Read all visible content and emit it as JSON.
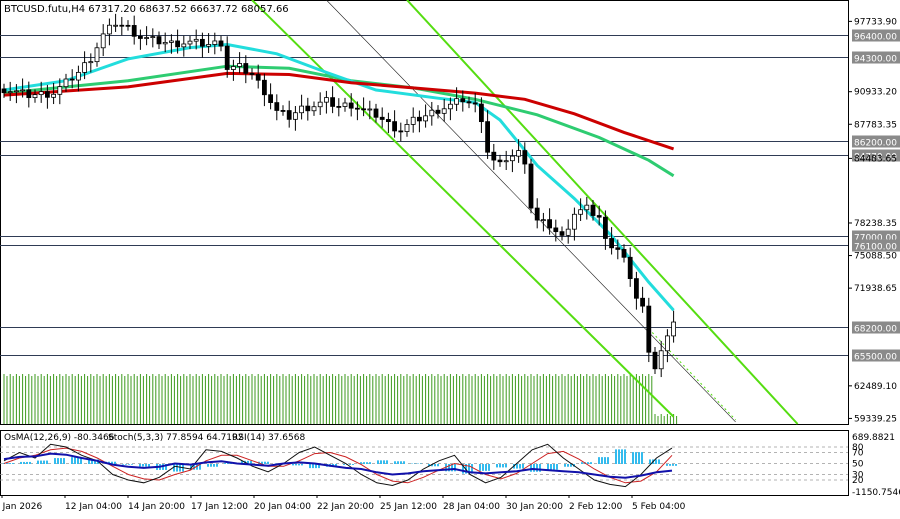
{
  "chart_data": {
    "type": "candlestick",
    "symbol_line": "BTCUSD.futu,H4  67317.20 68637.52 66637.72 68057.66",
    "main_axis_ticks": [
      "97733.90",
      "90933.20",
      "87783.35",
      "84483.65",
      "78238.35",
      "75088.50",
      "71938.65",
      "62489.10",
      "59339.25"
    ],
    "main_axis_ylim": [
      58800,
      99800
    ],
    "levels": [
      {
        "label": "96400.00",
        "value": 96400
      },
      {
        "label": "94300.00",
        "value": 94300
      },
      {
        "label": "86200.00",
        "value": 86200
      },
      {
        "label": "84770.00",
        "value": 84770
      },
      {
        "label": "77000.00",
        "value": 77000
      },
      {
        "label": "76100.00",
        "value": 76100
      },
      {
        "label": "68200.00",
        "value": 68200
      },
      {
        "label": "65500.00",
        "value": 65500
      }
    ],
    "ema_colors": {
      "slow": "#cc0000",
      "mid": "#2ecc71",
      "fast": "#22dddd"
    },
    "channel_color": "#55dd11",
    "x_labels": [
      "9 Jan 2026",
      "12 Jan 04:00",
      "14 Jan 20:00",
      "17 Jan 12:00",
      "20 Jan 04:00",
      "22 Jan 20:00",
      "25 Jan 12:00",
      "28 Jan 04:00",
      "30 Jan 20:00",
      "2 Feb 12:00",
      "5 Feb 04:00"
    ],
    "close_path": [
      [
        0,
        91200
      ],
      [
        4,
        90600
      ],
      [
        8,
        90800
      ],
      [
        10,
        91800
      ],
      [
        12,
        92800
      ],
      [
        14,
        94200
      ],
      [
        16,
        96400
      ],
      [
        18,
        97600
      ],
      [
        20,
        97100
      ],
      [
        22,
        96200
      ],
      [
        24,
        95900
      ],
      [
        27,
        95600
      ],
      [
        30,
        95700
      ],
      [
        33,
        95500
      ],
      [
        35,
        95700
      ],
      [
        36,
        93200
      ],
      [
        38,
        93300
      ],
      [
        40,
        92600
      ],
      [
        42,
        91000
      ],
      [
        44,
        89000
      ],
      [
        46,
        88500
      ],
      [
        48,
        89300
      ],
      [
        50,
        89600
      ],
      [
        52,
        90000
      ],
      [
        54,
        89500
      ],
      [
        56,
        89700
      ],
      [
        58,
        89100
      ],
      [
        60,
        88700
      ],
      [
        62,
        87800
      ],
      [
        64,
        87200
      ],
      [
        66,
        88100
      ],
      [
        68,
        88600
      ],
      [
        70,
        89200
      ],
      [
        72,
        89600
      ],
      [
        74,
        90200
      ],
      [
        76,
        89500
      ],
      [
        77,
        88400
      ],
      [
        78,
        85200
      ],
      [
        79,
        84200
      ],
      [
        80,
        83800
      ],
      [
        81,
        84500
      ],
      [
        82,
        84700
      ],
      [
        83,
        85000
      ],
      [
        84,
        84300
      ],
      [
        85,
        79800
      ],
      [
        86,
        78400
      ],
      [
        88,
        78000
      ],
      [
        90,
        76800
      ],
      [
        92,
        79200
      ],
      [
        94,
        79600
      ],
      [
        96,
        78800
      ],
      [
        97,
        76500
      ],
      [
        98,
        76200
      ],
      [
        99,
        75800
      ],
      [
        100,
        74800
      ],
      [
        101,
        72500
      ],
      [
        102,
        71200
      ],
      [
        103,
        70200
      ],
      [
        104,
        65500
      ],
      [
        105,
        64500
      ],
      [
        106,
        66000
      ],
      [
        107,
        67200
      ],
      [
        108,
        68300
      ]
    ],
    "ema_fast": [
      [
        0,
        91100
      ],
      [
        10,
        92000
      ],
      [
        20,
        94100
      ],
      [
        30,
        95200
      ],
      [
        36,
        95500
      ],
      [
        44,
        94600
      ],
      [
        52,
        92800
      ],
      [
        60,
        91100
      ],
      [
        70,
        90300
      ],
      [
        76,
        89900
      ],
      [
        80,
        88200
      ],
      [
        86,
        83800
      ],
      [
        92,
        80600
      ],
      [
        98,
        77000
      ],
      [
        104,
        72500
      ],
      [
        108,
        69800
      ]
    ],
    "ema_mid": [
      [
        0,
        90800
      ],
      [
        20,
        92000
      ],
      [
        36,
        93400
      ],
      [
        46,
        93200
      ],
      [
        56,
        92000
      ],
      [
        66,
        91300
      ],
      [
        76,
        90200
      ],
      [
        86,
        88700
      ],
      [
        96,
        86500
      ],
      [
        104,
        84300
      ],
      [
        108,
        82800
      ]
    ],
    "ema_slow": [
      [
        0,
        90600
      ],
      [
        20,
        91400
      ],
      [
        36,
        92700
      ],
      [
        46,
        92600
      ],
      [
        56,
        91800
      ],
      [
        66,
        91300
      ],
      [
        76,
        90800
      ],
      [
        84,
        90200
      ],
      [
        92,
        88800
      ],
      [
        100,
        87000
      ],
      [
        108,
        85400
      ]
    ],
    "volume_note": "",
    "osma_label": "OsMA(12,26,9) -80.3466",
    "stoch_label": "Stoch(5,3,3) 77.8594 64.7192",
    "rsi_label": "RSI(14) 37.6568",
    "sub_axis_ticks": [
      "689.8821",
      "80",
      "70",
      "50",
      "30",
      "20",
      "-1150.7546"
    ],
    "osma_values": [
      40,
      90,
      150,
      260,
      300,
      200,
      100,
      -30,
      -110,
      -260,
      -330,
      -250,
      -120,
      40,
      140,
      100,
      30,
      -60,
      -180,
      -120,
      -40,
      80,
      160,
      120,
      20,
      -100,
      -320,
      -420,
      -300,
      -150,
      -200,
      -340,
      -250,
      -120,
      80,
      300,
      640,
      520,
      200,
      -80
    ],
    "stoch_main": [
      55,
      70,
      60,
      85,
      80,
      65,
      55,
      30,
      20,
      15,
      25,
      45,
      40,
      75,
      72,
      60,
      45,
      35,
      50,
      70,
      80,
      65,
      50,
      30,
      15,
      10,
      20,
      40,
      55,
      65,
      30,
      15,
      25,
      50,
      75,
      85,
      60,
      40,
      20,
      12,
      8,
      30,
      60,
      78
    ],
    "stoch_signal": [
      50,
      60,
      65,
      75,
      78,
      72,
      60,
      45,
      30,
      22,
      20,
      30,
      38,
      55,
      65,
      65,
      55,
      45,
      45,
      55,
      68,
      70,
      62,
      48,
      30,
      18,
      15,
      25,
      38,
      50,
      45,
      30,
      22,
      32,
      50,
      68,
      72,
      58,
      40,
      25,
      15,
      18,
      35,
      65
    ],
    "rsi_values": [
      58,
      62,
      63,
      68,
      66,
      60,
      55,
      48,
      44,
      42,
      44,
      50,
      48,
      52,
      54,
      50,
      48,
      46,
      50,
      52,
      50,
      46,
      42,
      40,
      34,
      30,
      32,
      36,
      38,
      40,
      34,
      32,
      34,
      36,
      40,
      38,
      36,
      34,
      30,
      26,
      24,
      28,
      34,
      37
    ]
  }
}
